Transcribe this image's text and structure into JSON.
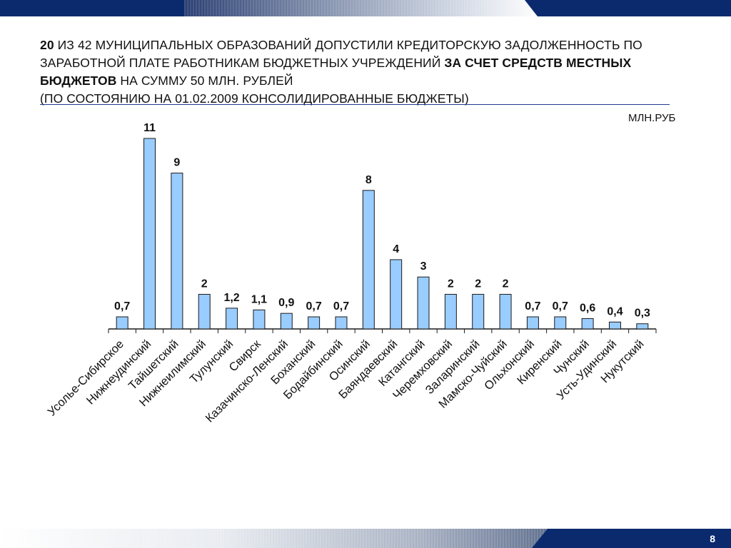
{
  "header": {
    "title_parts": [
      {
        "text": "20",
        "bold": true
      },
      {
        "text": " ИЗ 42 МУНИЦИПАЛЬНЫХ ОБРАЗОВАНИЙ ДОПУСТИЛИ КРЕДИТОРСКУЮ ЗАДОЛЖЕННОСТЬ ПО ЗАРАБОТНОЙ ПЛАТЕ РАБОТНИКАМ БЮДЖЕТНЫХ УЧРЕЖДЕНИЙ ",
        "bold": false
      },
      {
        "text": "ЗА СЧЕТ СРЕДСТВ МЕСТНЫХ БЮДЖЕТОВ",
        "bold": true
      },
      {
        "text": " НА СУММУ 50 МЛН. РУБЛЕЙ",
        "bold": false
      },
      {
        "text": "(ПО СОСТОЯНИЮ НА 01.02.2009 КОНСОЛИДИРОВАННЫЕ БЮДЖЕТЫ)",
        "bold": false,
        "newline": true
      }
    ],
    "unit_label": "МЛН.РУБ"
  },
  "footer": {
    "slide_number": "8"
  },
  "colors": {
    "bar_fill": "#99ccff",
    "bar_stroke": "#1a1a1a",
    "brand_dark": "#0b2a6e",
    "rule": "#1f3b8f"
  },
  "chart_data": {
    "type": "bar",
    "title": "",
    "xlabel": "",
    "ylabel": "",
    "ylim": [
      0,
      11
    ],
    "grid": false,
    "categories": [
      "Усолье-Сибирское",
      "Нижнеудинский",
      "Тайшетский",
      "Нижнеилимский",
      "Тулунский",
      "Свирск",
      "Казачинско-Ленский",
      "Боханский",
      "Бодайбинский",
      "Осинский",
      "Баяндаевский",
      "Катангский",
      "Черемховский",
      "Заларинский",
      "Мамско-Чуйский",
      "Ольхонский",
      "Киренский",
      "Чунский",
      "Усть-Удинский",
      "Нукутский"
    ],
    "values": [
      0.7,
      11,
      9,
      2,
      1.2,
      1.1,
      0.9,
      0.7,
      0.7,
      8,
      4,
      3,
      2,
      2,
      2,
      0.7,
      0.7,
      0.6,
      0.4,
      0.3
    ],
    "value_labels": [
      "0,7",
      "11",
      "9",
      "2",
      "1,2",
      "1,1",
      "0,9",
      "0,7",
      "0,7",
      "8",
      "4",
      "3",
      "2",
      "2",
      "2",
      "0,7",
      "0,7",
      "0,6",
      "0,4",
      "0,3"
    ]
  }
}
